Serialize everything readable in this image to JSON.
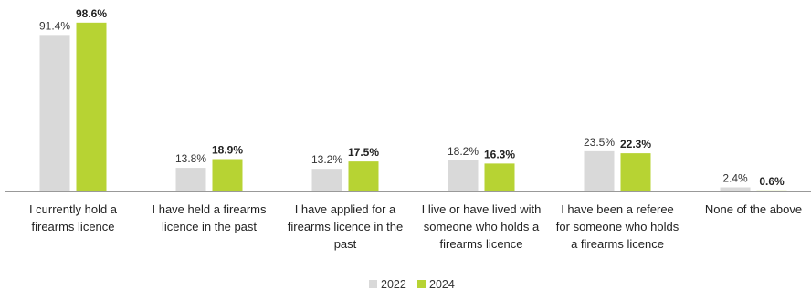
{
  "chart_data": {
    "type": "bar",
    "categories": [
      [
        "I currently hold a",
        "firearms licence"
      ],
      [
        "I have held a firearms",
        "licence in the past"
      ],
      [
        "I have applied for a",
        "firearms licence in the",
        "past"
      ],
      [
        "I live or have lived with",
        "someone who holds a",
        "firearms licence"
      ],
      [
        "I have been a referee",
        "for someone who holds",
        "a firearms licence"
      ],
      [
        "None of the above"
      ]
    ],
    "series": [
      {
        "name": "2022",
        "color": "#d9d9d9",
        "values": [
          91.4,
          13.8,
          13.2,
          18.2,
          23.5,
          2.4
        ],
        "labels": [
          "91.4%",
          "13.8%",
          "13.2%",
          "18.2%",
          "23.5%",
          "2.4%"
        ],
        "label_weight": "normal"
      },
      {
        "name": "2024",
        "color": "#b7d333",
        "values": [
          98.6,
          18.9,
          17.5,
          16.3,
          22.3,
          0.6
        ],
        "labels": [
          "98.6%",
          "18.9%",
          "17.5%",
          "16.3%",
          "22.3%",
          "0.6%"
        ],
        "label_weight": "bold"
      }
    ],
    "ylim": [
      0,
      100
    ],
    "grid": false,
    "legend_position": "bottom-center",
    "title": "",
    "xlabel": "",
    "ylabel": ""
  }
}
